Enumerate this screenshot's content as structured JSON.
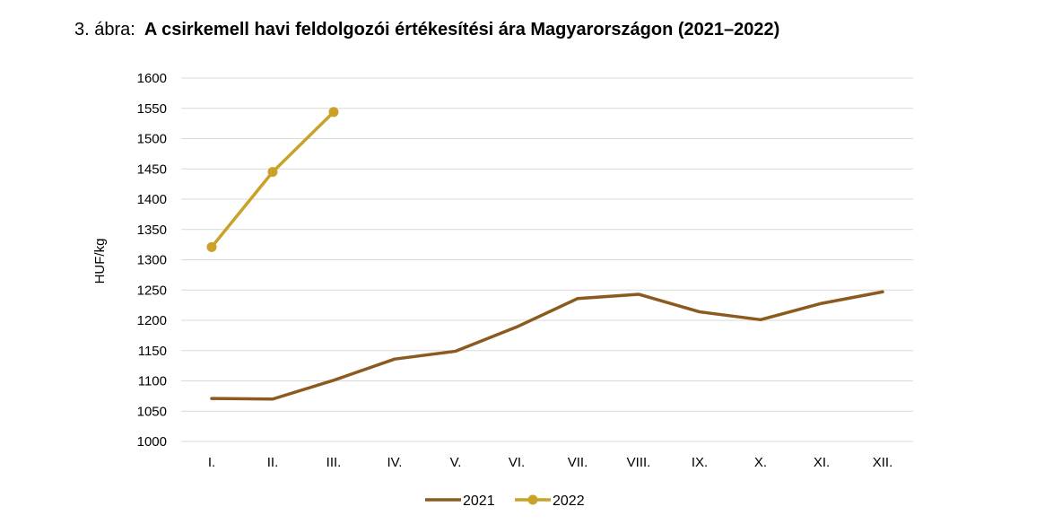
{
  "title": {
    "prefix": "3. ábra:",
    "main": "A csirkemell havi feldolgozói értékesítési ára Magyarországon (2021–2022)"
  },
  "chart_data": {
    "type": "line",
    "categories": [
      "I.",
      "II.",
      "III.",
      "IV.",
      "V.",
      "VI.",
      "VII.",
      "VIII.",
      "IX.",
      "X.",
      "XI.",
      "XII."
    ],
    "ylabel": "HUF/kg",
    "xlabel": "",
    "ylim": [
      1000,
      1600
    ],
    "yticks": [
      1000,
      1050,
      1100,
      1150,
      1200,
      1250,
      1300,
      1350,
      1400,
      1450,
      1500,
      1550,
      1600
    ],
    "grid": true,
    "legend": "bottom",
    "series": [
      {
        "name": "2021",
        "color": "#8B5A1E",
        "markers": false,
        "values": [
          1071,
          1070,
          1101,
          1136,
          1149,
          1189,
          1236,
          1243,
          1214,
          1201,
          1228,
          1247
        ]
      },
      {
        "name": "2022",
        "color": "#C9A227",
        "markers": true,
        "values": [
          1321,
          1445,
          1544,
          null,
          null,
          null,
          null,
          null,
          null,
          null,
          null,
          null
        ]
      }
    ]
  }
}
